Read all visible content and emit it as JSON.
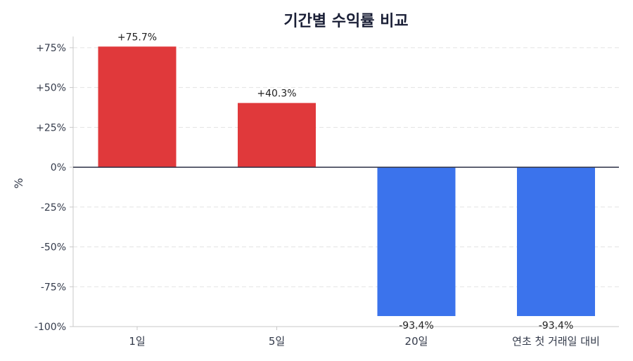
{
  "chart_data": {
    "type": "bar",
    "title": "기간별 수익률 비교",
    "xlabel": "",
    "ylabel": "%",
    "ylim": [
      -100,
      82
    ],
    "yticks": [
      75,
      50,
      25,
      0,
      -25,
      -50,
      -75,
      -100
    ],
    "ytick_labels": [
      "+75%",
      "+50%",
      "+25%",
      "0%",
      "-25%",
      "-50%",
      "-75%",
      "-100%"
    ],
    "categories": [
      "1일",
      "5일",
      "20일",
      "연초 첫 거래일 대비"
    ],
    "values": [
      75.7,
      40.3,
      -93.4,
      -93.4
    ],
    "value_labels": [
      "+75.7%",
      "+40.3%",
      "-93.4%",
      "-93.4%"
    ],
    "grid": true,
    "legend": "none",
    "colors": {
      "positive": "#e0393b",
      "negative": "#3b73ec",
      "zero_line": "#2b2f45",
      "grid": "#e3e3e3",
      "title": "#1a1f36"
    }
  }
}
